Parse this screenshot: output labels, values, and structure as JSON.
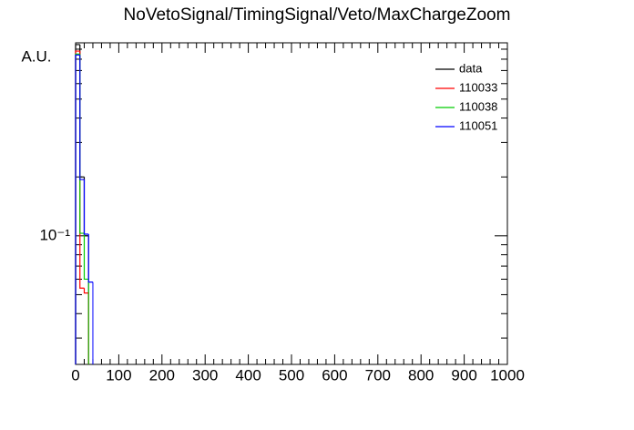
{
  "chart_data": {
    "type": "histogram",
    "title": "NoVetoSignal/TimingSignal/Veto/MaxChargeZoom",
    "y_label": "A.U.",
    "bins": [
      0,
      10,
      20,
      30,
      40
    ],
    "series": [
      {
        "name": "data",
        "color": "#000000",
        "values": [
          0.95,
          0.2,
          0.1,
          null
        ]
      },
      {
        "name": "110033",
        "color": "#ff0000",
        "values": [
          0.88,
          0.054,
          0.051,
          null
        ]
      },
      {
        "name": "110038",
        "color": "#00cc00",
        "values": [
          0.85,
          0.103,
          0.06,
          null
        ]
      },
      {
        "name": "110051",
        "color": "#0000ff",
        "values": [
          0.84,
          0.194,
          0.102,
          0.058
        ]
      }
    ],
    "xlim": [
      0,
      1000
    ],
    "xticks": [
      0,
      100,
      200,
      300,
      400,
      500,
      600,
      700,
      800,
      900,
      1000
    ],
    "ylim": [
      0.022,
      0.97
    ],
    "log_y": true,
    "yticks": [
      {
        "value": 0.1,
        "label": "10⁻¹"
      }
    ],
    "y_minor_ticks": [
      0.03,
      0.04,
      0.05,
      0.06,
      0.07,
      0.08,
      0.09,
      0.2,
      0.3,
      0.4,
      0.5,
      0.6,
      0.7,
      0.8,
      0.9
    ],
    "legend": "top-right"
  }
}
